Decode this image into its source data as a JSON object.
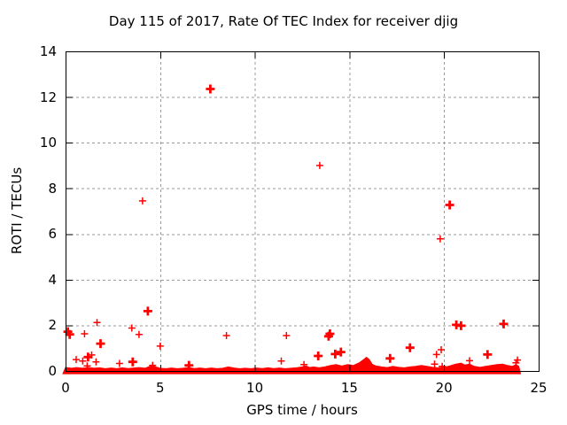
{
  "window": {
    "background": "#ffffff",
    "text_color": "#000000"
  },
  "chart_data": {
    "type": "scatter",
    "title": "Day 115 of 2017, Rate Of TEC Index for receiver djig",
    "xlabel": "GPS time / hours",
    "ylabel": "ROTI / TECUs",
    "xlim": [
      0,
      25
    ],
    "ylim": [
      0,
      14
    ],
    "xticks": [
      0,
      5,
      10,
      15,
      20,
      25
    ],
    "yticks": [
      0,
      2,
      4,
      6,
      8,
      10,
      12,
      14
    ],
    "grid": true,
    "grid_style": "dashed",
    "grid_color": "#9a9a9a",
    "border_color": "#000000",
    "legend_position": "none",
    "marker": "plus",
    "marker_color": "#ff0000",
    "series": [
      {
        "name": "ROTI",
        "comment": "points are [x_hours, y_TECUs, bold_overlap_flag]",
        "points": [
          [
            0.12,
            1.72,
            1
          ],
          [
            0.22,
            1.6,
            1
          ],
          [
            0.56,
            0.5,
            0
          ],
          [
            0.91,
            0.44,
            0
          ],
          [
            1.0,
            1.63,
            0
          ],
          [
            1.14,
            0.22,
            0
          ],
          [
            1.19,
            0.61,
            1
          ],
          [
            1.38,
            0.7,
            0
          ],
          [
            1.61,
            0.4,
            0
          ],
          [
            1.66,
            2.12,
            0
          ],
          [
            1.85,
            1.2,
            1
          ],
          [
            2.85,
            0.33,
            0
          ],
          [
            3.5,
            1.88,
            0
          ],
          [
            3.55,
            0.4,
            1
          ],
          [
            3.88,
            1.6,
            0
          ],
          [
            4.07,
            7.45,
            0
          ],
          [
            4.35,
            2.62,
            1
          ],
          [
            4.6,
            0.25,
            0
          ],
          [
            5.0,
            1.09,
            0
          ],
          [
            6.52,
            0.25,
            1
          ],
          [
            7.65,
            12.35,
            1
          ],
          [
            8.5,
            1.55,
            0
          ],
          [
            11.4,
            0.44,
            0
          ],
          [
            11.67,
            1.55,
            0
          ],
          [
            12.6,
            0.28,
            0
          ],
          [
            13.35,
            0.66,
            1
          ],
          [
            13.43,
            9.0,
            0
          ],
          [
            13.9,
            1.52,
            1
          ],
          [
            13.97,
            1.63,
            1
          ],
          [
            14.25,
            0.74,
            1
          ],
          [
            14.55,
            0.83,
            1
          ],
          [
            17.15,
            0.55,
            1
          ],
          [
            18.2,
            1.02,
            1
          ],
          [
            19.5,
            0.3,
            0
          ],
          [
            19.6,
            0.72,
            0
          ],
          [
            19.8,
            5.79,
            0
          ],
          [
            19.85,
            0.93,
            0
          ],
          [
            19.9,
            0.2,
            0
          ],
          [
            20.3,
            7.27,
            1
          ],
          [
            20.65,
            2.02,
            1
          ],
          [
            20.9,
            1.98,
            1
          ],
          [
            21.35,
            0.45,
            0
          ],
          [
            22.3,
            0.72,
            1
          ],
          [
            23.15,
            2.06,
            1
          ],
          [
            23.8,
            0.36,
            0
          ],
          [
            23.88,
            0.48,
            0
          ]
        ]
      }
    ],
    "baseline_band": {
      "comment": "dense carpet of overlapping points along y=0; profile is [x_hours, band_top_TECUs]",
      "x_start": 0,
      "x_end": 23.95,
      "y_bottom": -0.12,
      "profile": [
        [
          0,
          0.16
        ],
        [
          0.3,
          0.12
        ],
        [
          0.6,
          0.15
        ],
        [
          0.9,
          0.12
        ],
        [
          1.2,
          0.16
        ],
        [
          1.5,
          0.12
        ],
        [
          1.8,
          0.14
        ],
        [
          2.1,
          0.1
        ],
        [
          2.4,
          0.13
        ],
        [
          2.7,
          0.1
        ],
        [
          3.0,
          0.14
        ],
        [
          3.3,
          0.11
        ],
        [
          3.6,
          0.13
        ],
        [
          3.9,
          0.15
        ],
        [
          4.2,
          0.12
        ],
        [
          4.45,
          0.2
        ],
        [
          4.6,
          0.27
        ],
        [
          4.75,
          0.18
        ],
        [
          5.0,
          0.12
        ],
        [
          5.3,
          0.1
        ],
        [
          5.6,
          0.13
        ],
        [
          5.9,
          0.1
        ],
        [
          6.2,
          0.12
        ],
        [
          6.5,
          0.16
        ],
        [
          6.8,
          0.11
        ],
        [
          7.1,
          0.13
        ],
        [
          7.4,
          0.1
        ],
        [
          7.7,
          0.13
        ],
        [
          8.0,
          0.1
        ],
        [
          8.3,
          0.12
        ],
        [
          8.6,
          0.18
        ],
        [
          8.9,
          0.13
        ],
        [
          9.2,
          0.1
        ],
        [
          9.5,
          0.12
        ],
        [
          9.8,
          0.1
        ],
        [
          10.1,
          0.13
        ],
        [
          10.4,
          0.11
        ],
        [
          10.7,
          0.14
        ],
        [
          11.0,
          0.11
        ],
        [
          11.3,
          0.13
        ],
        [
          11.6,
          0.1
        ],
        [
          11.9,
          0.12
        ],
        [
          12.2,
          0.14
        ],
        [
          12.5,
          0.18
        ],
        [
          12.7,
          0.22
        ],
        [
          12.9,
          0.15
        ],
        [
          13.1,
          0.18
        ],
        [
          13.4,
          0.14
        ],
        [
          13.7,
          0.18
        ],
        [
          14.0,
          0.24
        ],
        [
          14.3,
          0.28
        ],
        [
          14.6,
          0.22
        ],
        [
          14.9,
          0.28
        ],
        [
          15.2,
          0.24
        ],
        [
          15.5,
          0.35
        ],
        [
          15.75,
          0.5
        ],
        [
          15.9,
          0.6
        ],
        [
          16.05,
          0.5
        ],
        [
          16.2,
          0.3
        ],
        [
          16.4,
          0.22
        ],
        [
          16.7,
          0.18
        ],
        [
          17.0,
          0.15
        ],
        [
          17.3,
          0.2
        ],
        [
          17.6,
          0.16
        ],
        [
          17.9,
          0.14
        ],
        [
          18.2,
          0.18
        ],
        [
          18.5,
          0.2
        ],
        [
          18.8,
          0.24
        ],
        [
          19.1,
          0.2
        ],
        [
          19.4,
          0.16
        ],
        [
          19.7,
          0.14
        ],
        [
          20.0,
          0.16
        ],
        [
          20.3,
          0.22
        ],
        [
          20.6,
          0.3
        ],
        [
          20.9,
          0.34
        ],
        [
          21.1,
          0.26
        ],
        [
          21.35,
          0.3
        ],
        [
          21.6,
          0.2
        ],
        [
          21.9,
          0.16
        ],
        [
          22.2,
          0.2
        ],
        [
          22.5,
          0.24
        ],
        [
          22.8,
          0.28
        ],
        [
          23.1,
          0.3
        ],
        [
          23.35,
          0.24
        ],
        [
          23.6,
          0.2
        ],
        [
          23.8,
          0.28
        ],
        [
          23.95,
          0.2
        ]
      ]
    }
  }
}
